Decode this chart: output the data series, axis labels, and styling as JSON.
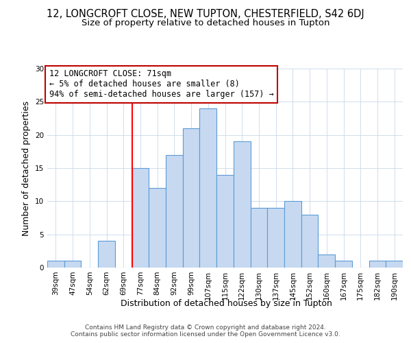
{
  "title": "12, LONGCROFT CLOSE, NEW TUPTON, CHESTERFIELD, S42 6DJ",
  "subtitle": "Size of property relative to detached houses in Tupton",
  "xlabel": "Distribution of detached houses by size in Tupton",
  "ylabel": "Number of detached properties",
  "bar_labels": [
    "39sqm",
    "47sqm",
    "54sqm",
    "62sqm",
    "69sqm",
    "77sqm",
    "84sqm",
    "92sqm",
    "99sqm",
    "107sqm",
    "115sqm",
    "122sqm",
    "130sqm",
    "137sqm",
    "145sqm",
    "152sqm",
    "160sqm",
    "167sqm",
    "175sqm",
    "182sqm",
    "190sqm"
  ],
  "bar_values": [
    1,
    1,
    0,
    4,
    0,
    15,
    12,
    17,
    21,
    24,
    14,
    19,
    9,
    9,
    10,
    8,
    2,
    1,
    0,
    1,
    1
  ],
  "bar_color": "#c6d9f1",
  "bar_edge_color": "#5b9bd5",
  "redline_index": 5.0,
  "ylim": [
    0,
    30
  ],
  "yticks": [
    0,
    5,
    10,
    15,
    20,
    25,
    30
  ],
  "annotation_text": "12 LONGCROFT CLOSE: 71sqm\n← 5% of detached houses are smaller (8)\n94% of semi-detached houses are larger (157) →",
  "annotation_box_color": "#ffffff",
  "annotation_box_edge": "#c00000",
  "footer_line1": "Contains HM Land Registry data © Crown copyright and database right 2024.",
  "footer_line2": "Contains public sector information licensed under the Open Government Licence v3.0.",
  "title_fontsize": 10.5,
  "subtitle_fontsize": 9.5,
  "axis_label_fontsize": 9,
  "tick_fontsize": 7.5,
  "annotation_fontsize": 8.5,
  "footer_fontsize": 6.5
}
